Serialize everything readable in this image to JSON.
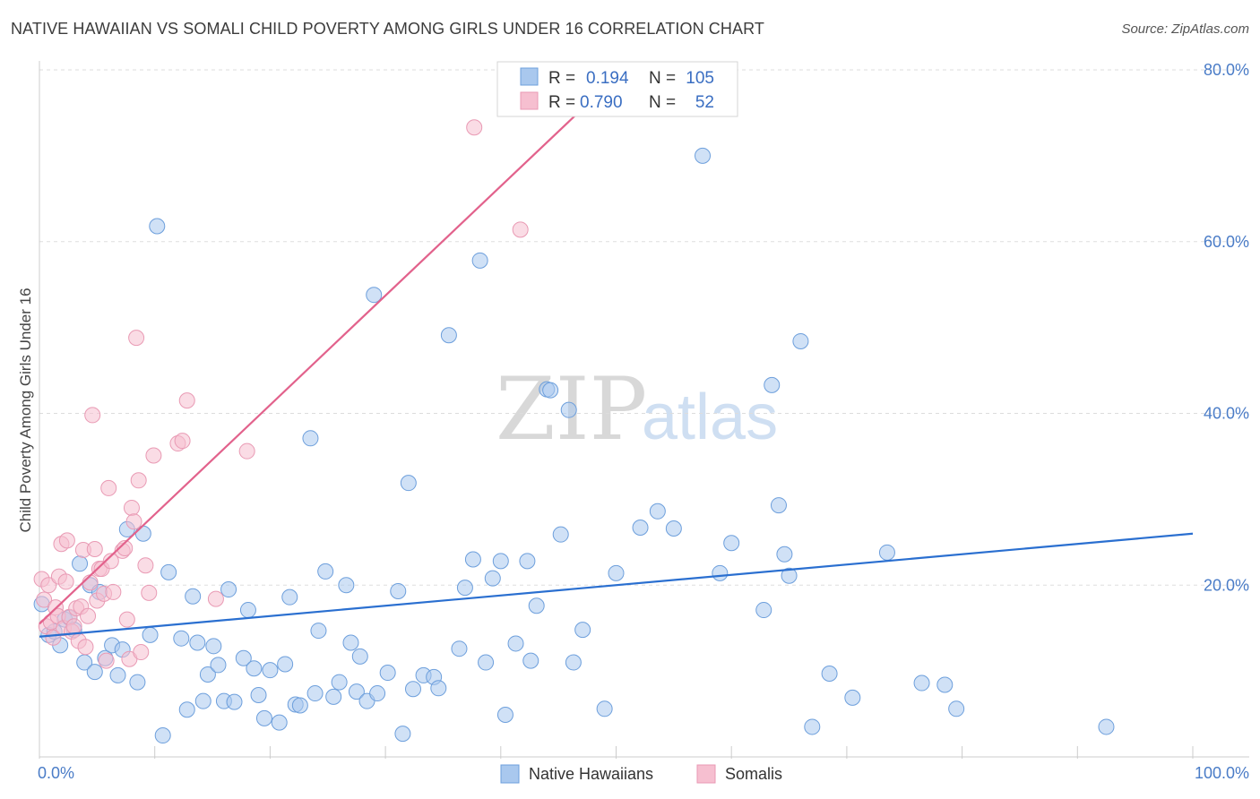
{
  "title": "NATIVE HAWAIIAN VS SOMALI CHILD POVERTY AMONG GIRLS UNDER 16 CORRELATION CHART",
  "source": "Source: ZipAtlas.com",
  "watermark": {
    "zip": "ZIP",
    "atlas": "atlas"
  },
  "colors": {
    "blue_fill": "#a9c8ee",
    "blue_stroke": "#6d9fdc",
    "blue_line": "#2a6fd0",
    "pink_fill": "#f6bfd0",
    "pink_stroke": "#e99ab4",
    "pink_line": "#e2628c",
    "grid": "#dddddd",
    "tick_text": "#4a7cc7"
  },
  "legend": {
    "rows": [
      {
        "r_label": "R =",
        "r_value": "0.194",
        "n_label": "N =",
        "n_value": "105",
        "series": "blue"
      },
      {
        "r_label": "R =",
        "r_value": "0.790",
        "n_label": "N =",
        "n_value": "52",
        "series": "pink"
      }
    ]
  },
  "chart_data": {
    "type": "scatter",
    "title": "NATIVE HAWAIIAN VS SOMALI CHILD POVERTY AMONG GIRLS UNDER 16 CORRELATION CHART",
    "xlabel": "",
    "ylabel": "Child Poverty Among Girls Under 16",
    "xlim": [
      0,
      100
    ],
    "ylim": [
      0,
      80
    ],
    "x_tick_labels": [
      "0.0%",
      "100.0%"
    ],
    "y_ticks": [
      20,
      40,
      60,
      80
    ],
    "y_tick_labels": [
      "20.0%",
      "40.0%",
      "60.0%",
      "80.0%"
    ],
    "grid": true,
    "series": [
      {
        "name": "Native Hawaiians",
        "color": "#a9c8ee",
        "trend": {
          "x0": 0,
          "y0": 14.0,
          "x1": 100,
          "y1": 26.0
        },
        "points": [
          [
            0.2,
            17.8
          ],
          [
            0.8,
            14.2
          ],
          [
            1.3,
            14.6
          ],
          [
            1.8,
            13.0
          ],
          [
            2.2,
            16.0
          ],
          [
            2.6,
            16.2
          ],
          [
            3.0,
            14.8
          ],
          [
            3.5,
            22.5
          ],
          [
            3.9,
            11.0
          ],
          [
            4.4,
            20.0
          ],
          [
            4.8,
            9.9
          ],
          [
            5.2,
            19.2
          ],
          [
            5.7,
            11.5
          ],
          [
            6.3,
            13.0
          ],
          [
            6.8,
            9.5
          ],
          [
            7.2,
            12.5
          ],
          [
            7.6,
            26.5
          ],
          [
            8.5,
            8.7
          ],
          [
            9.0,
            26.0
          ],
          [
            9.6,
            14.2
          ],
          [
            10.2,
            61.8
          ],
          [
            10.7,
            2.5
          ],
          [
            11.2,
            21.5
          ],
          [
            12.3,
            13.8
          ],
          [
            12.8,
            5.5
          ],
          [
            13.3,
            18.7
          ],
          [
            13.7,
            13.3
          ],
          [
            14.2,
            6.5
          ],
          [
            14.6,
            9.6
          ],
          [
            15.1,
            12.9
          ],
          [
            15.5,
            10.7
          ],
          [
            16.0,
            6.5
          ],
          [
            16.4,
            19.5
          ],
          [
            16.9,
            6.4
          ],
          [
            17.7,
            11.5
          ],
          [
            18.1,
            17.1
          ],
          [
            18.6,
            10.3
          ],
          [
            19.0,
            7.2
          ],
          [
            19.5,
            4.5
          ],
          [
            20.0,
            10.1
          ],
          [
            20.8,
            4.0
          ],
          [
            21.3,
            10.8
          ],
          [
            21.7,
            18.6
          ],
          [
            22.2,
            6.1
          ],
          [
            22.6,
            6.0
          ],
          [
            23.5,
            37.1
          ],
          [
            23.9,
            7.4
          ],
          [
            24.2,
            14.7
          ],
          [
            24.8,
            21.6
          ],
          [
            25.5,
            7.0
          ],
          [
            26.0,
            8.7
          ],
          [
            26.6,
            20.0
          ],
          [
            27.0,
            13.3
          ],
          [
            27.5,
            7.6
          ],
          [
            27.8,
            11.7
          ],
          [
            28.4,
            6.5
          ],
          [
            29.0,
            53.8
          ],
          [
            29.3,
            7.4
          ],
          [
            30.2,
            9.8
          ],
          [
            31.1,
            19.3
          ],
          [
            31.5,
            2.7
          ],
          [
            32.0,
            31.9
          ],
          [
            32.4,
            7.9
          ],
          [
            33.3,
            9.5
          ],
          [
            34.2,
            9.3
          ],
          [
            34.6,
            8.0
          ],
          [
            35.5,
            49.1
          ],
          [
            36.4,
            12.6
          ],
          [
            36.9,
            19.7
          ],
          [
            37.6,
            23.0
          ],
          [
            38.2,
            57.8
          ],
          [
            38.7,
            11.0
          ],
          [
            39.3,
            20.8
          ],
          [
            40.0,
            22.8
          ],
          [
            40.4,
            4.9
          ],
          [
            41.3,
            13.2
          ],
          [
            42.3,
            22.8
          ],
          [
            42.6,
            11.2
          ],
          [
            43.1,
            17.6
          ],
          [
            44.0,
            42.8
          ],
          [
            44.3,
            42.7
          ],
          [
            45.2,
            25.9
          ],
          [
            45.9,
            40.4
          ],
          [
            46.3,
            11.0
          ],
          [
            47.1,
            14.8
          ],
          [
            49.0,
            5.6
          ],
          [
            50.0,
            21.4
          ],
          [
            52.1,
            26.7
          ],
          [
            53.6,
            28.6
          ],
          [
            55.0,
            26.6
          ],
          [
            57.5,
            70.0
          ],
          [
            59.0,
            21.4
          ],
          [
            60.0,
            24.9
          ],
          [
            62.8,
            17.1
          ],
          [
            63.5,
            43.3
          ],
          [
            64.1,
            29.3
          ],
          [
            64.6,
            23.6
          ],
          [
            65.0,
            21.1
          ],
          [
            66.0,
            48.4
          ],
          [
            67.0,
            3.5
          ],
          [
            68.5,
            9.7
          ],
          [
            70.5,
            6.9
          ],
          [
            73.5,
            23.8
          ],
          [
            76.5,
            8.6
          ],
          [
            78.5,
            8.4
          ],
          [
            79.5,
            5.6
          ],
          [
            92.5,
            3.5
          ]
        ]
      },
      {
        "name": "Somalis",
        "color": "#f6bfd0",
        "trend": {
          "x0": 0,
          "y0": 15.5,
          "x1": 50.0,
          "y1": 79.2
        },
        "points": [
          [
            0.2,
            20.7
          ],
          [
            0.4,
            18.3
          ],
          [
            0.6,
            15.2
          ],
          [
            0.8,
            20.0
          ],
          [
            1.0,
            15.7
          ],
          [
            1.2,
            13.9
          ],
          [
            1.4,
            17.4
          ],
          [
            1.6,
            16.4
          ],
          [
            1.7,
            21.0
          ],
          [
            1.9,
            24.8
          ],
          [
            2.1,
            15.0
          ],
          [
            2.3,
            20.4
          ],
          [
            2.4,
            25.2
          ],
          [
            2.6,
            16.3
          ],
          [
            2.8,
            14.6
          ],
          [
            3.0,
            15.2
          ],
          [
            3.2,
            17.3
          ],
          [
            3.4,
            13.5
          ],
          [
            3.6,
            17.5
          ],
          [
            3.8,
            24.1
          ],
          [
            4.0,
            12.8
          ],
          [
            4.2,
            16.4
          ],
          [
            4.4,
            20.3
          ],
          [
            4.6,
            39.8
          ],
          [
            4.8,
            24.2
          ],
          [
            5.0,
            18.2
          ],
          [
            5.2,
            21.9
          ],
          [
            5.4,
            21.9
          ],
          [
            5.6,
            19.0
          ],
          [
            5.8,
            11.2
          ],
          [
            6.0,
            31.3
          ],
          [
            6.2,
            22.8
          ],
          [
            6.4,
            19.2
          ],
          [
            7.2,
            24.0
          ],
          [
            7.4,
            24.3
          ],
          [
            7.6,
            16.0
          ],
          [
            7.8,
            11.4
          ],
          [
            8.0,
            29.0
          ],
          [
            8.2,
            27.4
          ],
          [
            8.4,
            48.8
          ],
          [
            8.6,
            32.2
          ],
          [
            8.8,
            12.2
          ],
          [
            9.2,
            22.3
          ],
          [
            9.5,
            19.1
          ],
          [
            9.9,
            35.1
          ],
          [
            12.0,
            36.5
          ],
          [
            12.4,
            36.8
          ],
          [
            12.8,
            41.5
          ],
          [
            15.3,
            18.4
          ],
          [
            18.0,
            35.6
          ],
          [
            37.7,
            73.3
          ],
          [
            41.7,
            61.4
          ]
        ]
      }
    ]
  },
  "bottom_legend": {
    "blue_label": "Native Hawaiians",
    "pink_label": "Somalis"
  }
}
